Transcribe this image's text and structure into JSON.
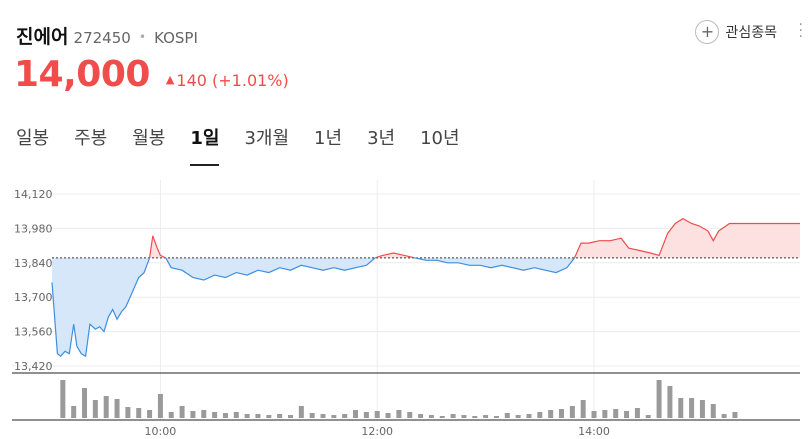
{
  "stock": {
    "name": "진에어",
    "code": "272450",
    "separator": "•",
    "market": "KOSPI",
    "price": "14,000",
    "change_arrow": "▲",
    "change": "140",
    "change_percent": "(+1.01%)"
  },
  "actions": {
    "favorite_icon": "plus-icon",
    "favorite_label": "관심종목",
    "more_icon": "more-vertical-icon"
  },
  "tabs": [
    {
      "label": "일봉",
      "active": false
    },
    {
      "label": "주봉",
      "active": false
    },
    {
      "label": "월봉",
      "active": false
    },
    {
      "label": "1일",
      "active": true
    },
    {
      "label": "3개월",
      "active": false
    },
    {
      "label": "1년",
      "active": false
    },
    {
      "label": "3년",
      "active": false
    },
    {
      "label": "10년",
      "active": false
    }
  ],
  "colors": {
    "up": "#f04c4c",
    "down": "#3d8fe0",
    "up_fill": "#fde0e0",
    "down_fill": "#d6e7f9",
    "volume": "#9a9a9a"
  },
  "chart_data": {
    "type": "line",
    "y_ticks": [
      "14,120",
      "13,980",
      "13,840",
      "13,700",
      "13,560",
      "13,420"
    ],
    "y_tick_values": [
      14120,
      13980,
      13840,
      13700,
      13560,
      13420
    ],
    "ylim": [
      13420,
      14120
    ],
    "x_ticks": [
      "10:00",
      "12:00",
      "14:00"
    ],
    "x_tick_values": [
      10,
      12,
      14
    ],
    "xlim": [
      9,
      15.9
    ],
    "baseline": 13860,
    "grid": true,
    "series": [
      {
        "points": [
          [
            9.0,
            13760
          ],
          [
            9.05,
            13470
          ],
          [
            9.08,
            13460
          ],
          [
            9.12,
            13480
          ],
          [
            9.16,
            13470
          ],
          [
            9.2,
            13590
          ],
          [
            9.23,
            13500
          ],
          [
            9.27,
            13470
          ],
          [
            9.31,
            13460
          ],
          [
            9.35,
            13590
          ],
          [
            9.4,
            13570
          ],
          [
            9.44,
            13580
          ],
          [
            9.48,
            13560
          ],
          [
            9.52,
            13620
          ],
          [
            9.56,
            13650
          ],
          [
            9.6,
            13610
          ],
          [
            9.64,
            13640
          ],
          [
            9.68,
            13660
          ],
          [
            9.72,
            13700
          ],
          [
            9.76,
            13740
          ],
          [
            9.8,
            13780
          ],
          [
            9.85,
            13800
          ],
          [
            9.9,
            13860
          ],
          [
            9.93,
            13950
          ],
          [
            9.97,
            13900
          ],
          [
            10.0,
            13870
          ],
          [
            10.05,
            13860
          ],
          [
            10.1,
            13820
          ],
          [
            10.2,
            13810
          ],
          [
            10.3,
            13780
          ],
          [
            10.4,
            13770
          ],
          [
            10.5,
            13790
          ],
          [
            10.6,
            13780
          ],
          [
            10.7,
            13800
          ],
          [
            10.8,
            13790
          ],
          [
            10.9,
            13810
          ],
          [
            11.0,
            13800
          ],
          [
            11.1,
            13820
          ],
          [
            11.2,
            13810
          ],
          [
            11.3,
            13830
          ],
          [
            11.4,
            13820
          ],
          [
            11.5,
            13810
          ],
          [
            11.6,
            13820
          ],
          [
            11.7,
            13810
          ],
          [
            11.8,
            13820
          ],
          [
            11.9,
            13830
          ],
          [
            11.98,
            13860
          ],
          [
            12.05,
            13870
          ],
          [
            12.15,
            13880
          ],
          [
            12.25,
            13870
          ],
          [
            12.35,
            13860
          ],
          [
            12.45,
            13850
          ],
          [
            12.55,
            13850
          ],
          [
            12.65,
            13840
          ],
          [
            12.75,
            13840
          ],
          [
            12.85,
            13830
          ],
          [
            12.95,
            13830
          ],
          [
            13.05,
            13820
          ],
          [
            13.15,
            13830
          ],
          [
            13.25,
            13820
          ],
          [
            13.35,
            13810
          ],
          [
            13.45,
            13820
          ],
          [
            13.55,
            13810
          ],
          [
            13.65,
            13800
          ],
          [
            13.75,
            13820
          ],
          [
            13.82,
            13860
          ],
          [
            13.88,
            13920
          ],
          [
            13.95,
            13920
          ],
          [
            14.05,
            13930
          ],
          [
            14.15,
            13930
          ],
          [
            14.25,
            13940
          ],
          [
            14.32,
            13900
          ],
          [
            14.42,
            13890
          ],
          [
            14.52,
            13880
          ],
          [
            14.6,
            13870
          ],
          [
            14.68,
            13960
          ],
          [
            14.75,
            14000
          ],
          [
            14.82,
            14020
          ],
          [
            14.9,
            14000
          ],
          [
            14.97,
            13990
          ],
          [
            15.05,
            13970
          ],
          [
            15.1,
            13930
          ],
          [
            15.15,
            13970
          ],
          [
            15.25,
            14000
          ],
          [
            15.4,
            14000
          ],
          [
            15.6,
            14000
          ],
          [
            15.9,
            14000
          ]
        ]
      }
    ],
    "volume": {
      "x": [
        9.1,
        9.2,
        9.3,
        9.4,
        9.5,
        9.6,
        9.7,
        9.8,
        9.9,
        10.0,
        10.1,
        10.2,
        10.3,
        10.4,
        10.5,
        10.6,
        10.7,
        10.8,
        10.9,
        11.0,
        11.1,
        11.2,
        11.3,
        11.4,
        11.5,
        11.6,
        11.7,
        11.8,
        11.9,
        12.0,
        12.1,
        12.2,
        12.3,
        12.4,
        12.5,
        12.6,
        12.7,
        12.8,
        12.9,
        13.0,
        13.1,
        13.2,
        13.3,
        13.4,
        13.5,
        13.6,
        13.7,
        13.8,
        13.9,
        14.0,
        14.1,
        14.2,
        14.3,
        14.4,
        14.5,
        14.6,
        14.7,
        14.8,
        14.9,
        15.0,
        15.1,
        15.2,
        15.3
      ],
      "values": [
        38,
        12,
        30,
        18,
        22,
        19,
        11,
        10,
        8,
        24,
        6,
        12,
        7,
        8,
        6,
        5,
        6,
        4,
        4,
        3,
        4,
        3,
        12,
        5,
        4,
        3,
        4,
        8,
        6,
        7,
        5,
        8,
        6,
        4,
        3,
        2,
        4,
        3,
        2,
        3,
        2,
        5,
        3,
        4,
        6,
        8,
        9,
        12,
        18,
        7,
        8,
        9,
        7,
        10,
        3,
        38,
        32,
        20,
        20,
        18,
        14,
        4,
        6
      ],
      "ymax": 42
    }
  }
}
